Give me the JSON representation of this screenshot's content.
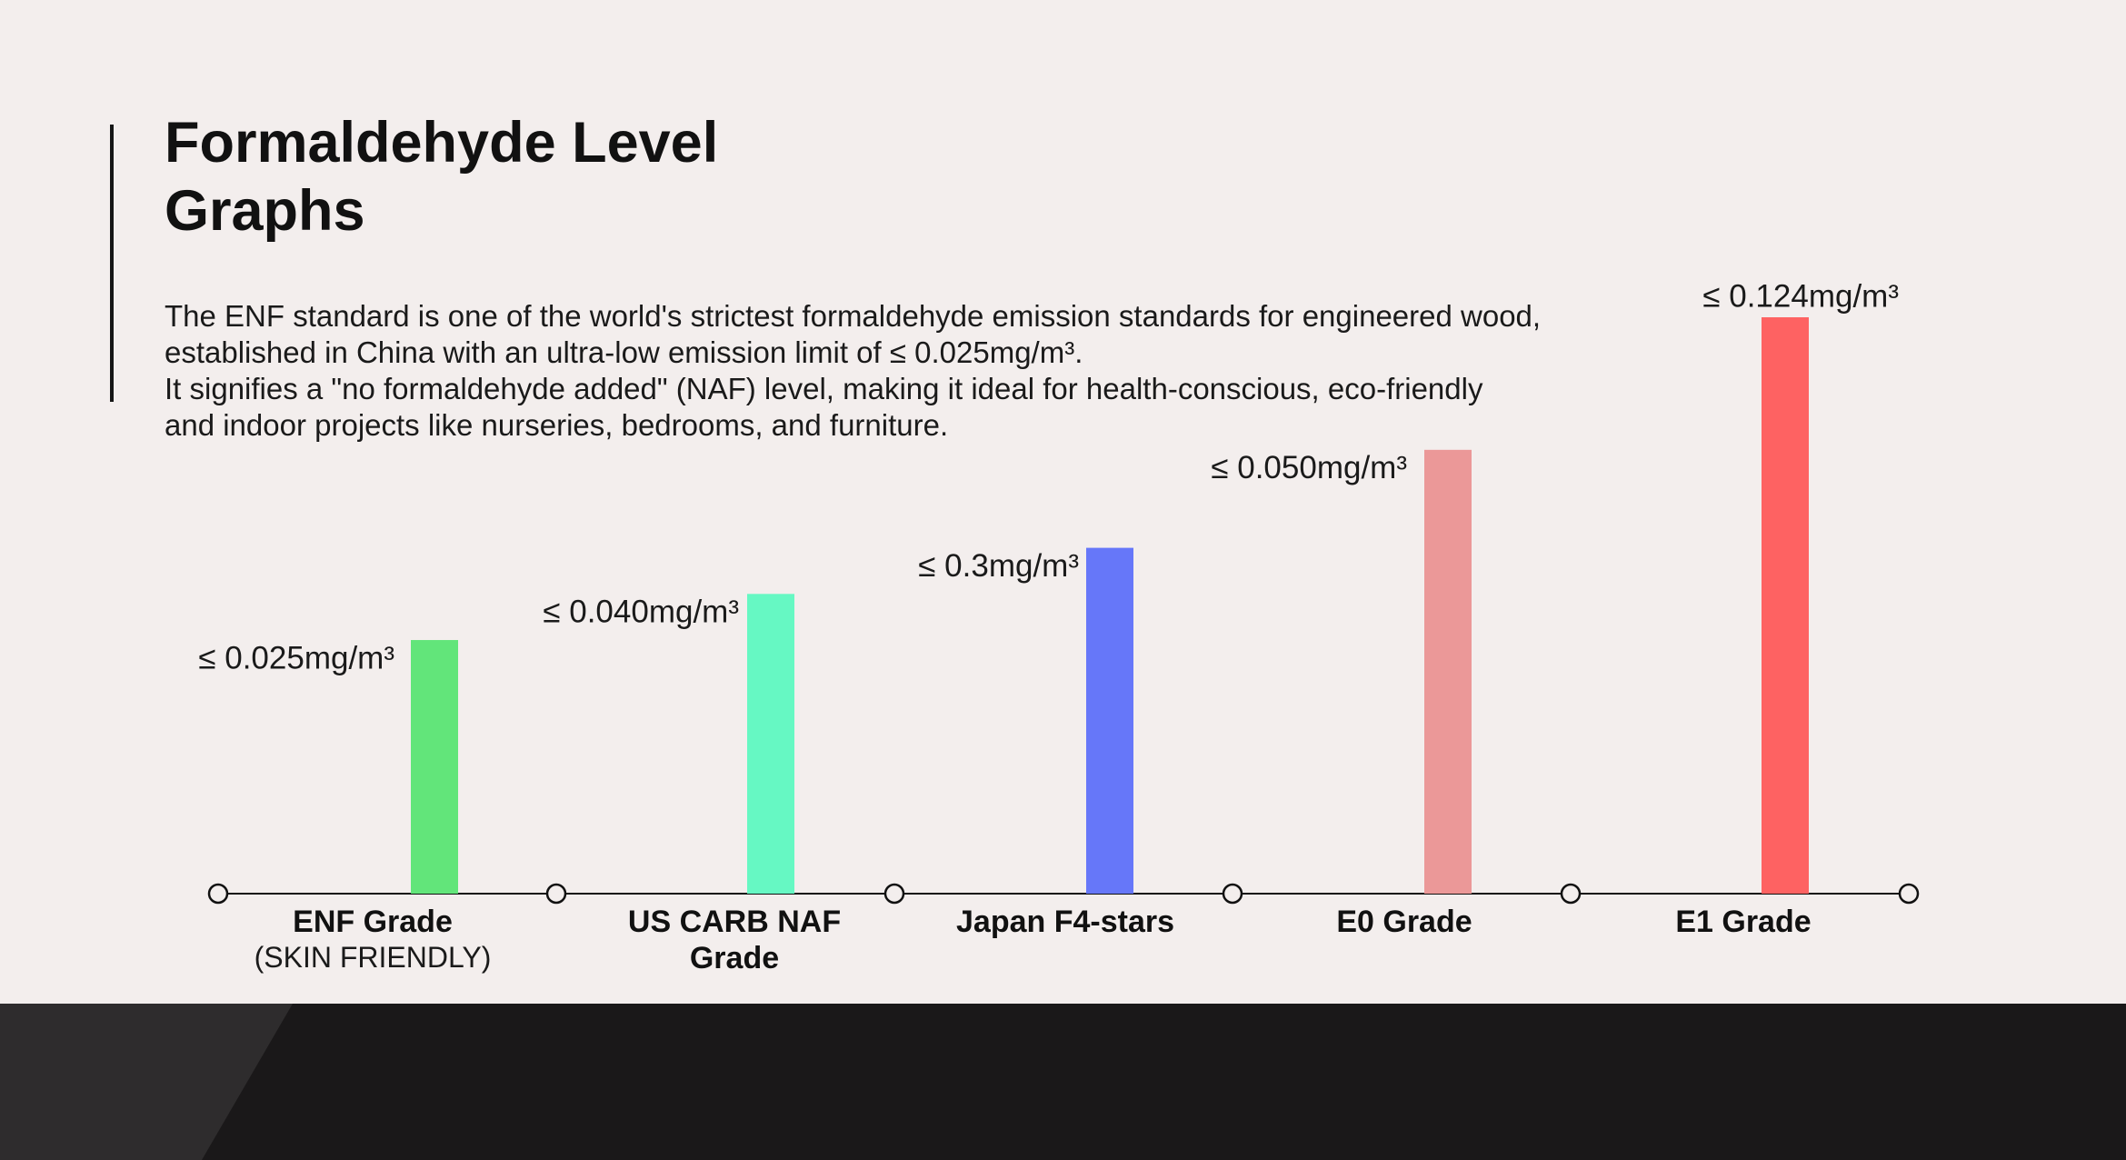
{
  "slide": {
    "title_line1": "Formaldehyde Level",
    "title_line2": "Graphs",
    "description_lines": [
      "The ENF standard is one of the world's strictest formaldehyde emission standards for engineered wood,",
      "established in China with an ultra-low emission limit of ≤ 0.025mg/m³.",
      "It signifies a \"no formaldehyde added\" (NAF) level, making it ideal for health-conscious, eco-friendly",
      "and indoor projects like nurseries, bedrooms, and furniture."
    ]
  },
  "colors": {
    "background": "#f3eeed",
    "footer": "#1a1819",
    "footer_accent": "#2e2c2d"
  },
  "chart_data": {
    "type": "bar",
    "categories": [
      "ENF Grade",
      "US CARB NAF Grade",
      "Japan F4-stars",
      "E0 Grade",
      "E1 Grade"
    ],
    "category_sublabels": [
      "(SKIN FRIENDLY)",
      "",
      "",
      "",
      ""
    ],
    "value_labels": [
      "≤ 0.025mg/m³",
      "≤ 0.040mg/m³",
      "≤ 0.3mg/m³",
      "≤ 0.050mg/m³",
      "≤ 0.124mg/m³"
    ],
    "values": [
      0.025,
      0.04,
      0.3,
      0.05,
      0.124
    ],
    "relative_bar_levels": [
      0.44,
      0.52,
      0.6,
      0.77,
      1.0
    ],
    "bar_colors": [
      "#62e57a",
      "#66f8c3",
      "#6677f9",
      "#eb9898",
      "#fe6262"
    ],
    "axis_color": "#111111",
    "title": "",
    "xlabel": "",
    "ylabel": ""
  }
}
